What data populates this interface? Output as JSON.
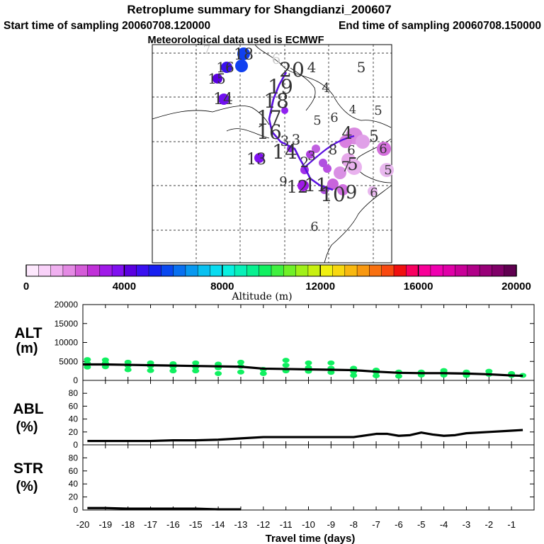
{
  "header": {
    "title": "Retroplume summary for Shangdianzi_200607",
    "start": "Start time of sampling 20060708.120000",
    "end": "End time of sampling 20060708.150000",
    "met": "Meteorological data used is ECMWF"
  },
  "colorbar": {
    "label": "Altitude (m)",
    "min": 0,
    "max": 20000,
    "tick_values": [
      0,
      4000,
      8000,
      12000,
      16000,
      20000
    ],
    "tick_labels": [
      "0",
      "4000",
      "8000",
      "12000",
      "16000",
      "20000"
    ],
    "colors": [
      "#fde8fd",
      "#f9d2f9",
      "#f0b0f0",
      "#e48ae4",
      "#d45cd8",
      "#c030d8",
      "#a01ae8",
      "#8010f0",
      "#5a00e0",
      "#3a10f0",
      "#1820f0",
      "#0848f0",
      "#0870f0",
      "#0898f0",
      "#08c0f0",
      "#08dcf0",
      "#08f0e0",
      "#08f0b8",
      "#08f090",
      "#10f060",
      "#40f040",
      "#70f028",
      "#a0f018",
      "#c8f010",
      "#f0f010",
      "#f8d810",
      "#f8b810",
      "#f89810",
      "#f87010",
      "#f84810",
      "#f01010",
      "#f80060",
      "#f80098",
      "#f000b0",
      "#e000a8",
      "#c80098",
      "#b00088",
      "#980078",
      "#800068",
      "#600050"
    ]
  },
  "map": {
    "plume_numbers": [
      {
        "t": "6",
        "c": "#ccc"
      },
      {
        "t": "7",
        "c": "#ccc"
      },
      {
        "t": "18",
        "c": "#333"
      },
      {
        "t": "16",
        "c": "#333"
      },
      {
        "t": "15",
        "c": "#333"
      },
      {
        "t": "14",
        "c": "#333"
      },
      {
        "t": "20",
        "c": "#333"
      },
      {
        "t": "4",
        "c": "#333"
      },
      {
        "t": "5",
        "c": "#333"
      },
      {
        "t": "4",
        "c": "#333"
      },
      {
        "t": "19",
        "c": "#333"
      },
      {
        "t": "18",
        "c": "#333"
      },
      {
        "t": "4",
        "c": "#333"
      },
      {
        "t": "5",
        "c": "#333"
      },
      {
        "t": "5",
        "c": "#333"
      },
      {
        "t": "6",
        "c": "#333"
      },
      {
        "t": "17",
        "c": "#333"
      },
      {
        "t": "16",
        "c": "#333"
      },
      {
        "t": "3",
        "c": "#333"
      },
      {
        "t": "3",
        "c": "#333"
      },
      {
        "t": "4",
        "c": "#333"
      },
      {
        "t": "5",
        "c": "#333"
      },
      {
        "t": "6",
        "c": "#333"
      },
      {
        "t": "13",
        "c": "#333"
      },
      {
        "t": "14",
        "c": "#333"
      },
      {
        "t": "3",
        "c": "#333"
      },
      {
        "t": "2",
        "c": "#333"
      },
      {
        "t": "8",
        "c": "#333"
      },
      {
        "t": "7",
        "c": "#333"
      },
      {
        "t": "5",
        "c": "#333"
      },
      {
        "t": "6",
        "c": "#333"
      },
      {
        "t": "9",
        "c": "#333"
      },
      {
        "t": "12",
        "c": "#333"
      },
      {
        "t": "11",
        "c": "#333"
      },
      {
        "t": "10",
        "c": "#333"
      },
      {
        "t": "9",
        "c": "#333"
      },
      {
        "t": "6",
        "c": "#333"
      },
      {
        "t": "6",
        "c": "#333"
      },
      {
        "t": "5",
        "c": "#333"
      }
    ]
  },
  "chart_data": [
    {
      "type": "scatter",
      "panel": "ALT",
      "ylabel_line1": "ALT",
      "ylabel_line2": "(m)",
      "ylim": [
        0,
        20000
      ],
      "yticks": [
        0,
        5000,
        10000,
        15000,
        20000
      ],
      "ytick_labels": [
        "0",
        "5000",
        "10000",
        "15000",
        "20000"
      ],
      "series": [
        {
          "name": "mean altitude",
          "style": "line",
          "x": [
            -20,
            -19,
            -18,
            -17,
            -16,
            -15,
            -14,
            -13,
            -12,
            -11,
            -10,
            -9,
            -8,
            -7,
            -6,
            -5,
            -4,
            -3,
            -2,
            -1,
            -0.5
          ],
          "y": [
            4200,
            4200,
            4100,
            4000,
            3900,
            3800,
            3700,
            3600,
            3100,
            3000,
            2900,
            2800,
            2700,
            2300,
            2000,
            1900,
            1900,
            1800,
            1600,
            1300,
            1200
          ]
        },
        {
          "name": "particle altitude",
          "style": "points",
          "x": [
            -19.8,
            -19.8,
            -19.8,
            -19,
            -19,
            -19,
            -18,
            -18,
            -18,
            -17,
            -17,
            -17,
            -16,
            -16,
            -16,
            -15,
            -15,
            -15,
            -14,
            -14,
            -14,
            -13,
            -13,
            -13,
            -12,
            -12,
            -11,
            -11,
            -11,
            -10,
            -10,
            -10,
            -9,
            -9,
            -9,
            -8,
            -8,
            -8,
            -7,
            -7,
            -7,
            -6,
            -6,
            -5,
            -5,
            -4,
            -4,
            -4,
            -3,
            -3,
            -2,
            -2,
            -1,
            -1,
            -0.5
          ],
          "y": [
            3500,
            4500,
            5500,
            3600,
            4600,
            5400,
            2800,
            3900,
            4800,
            2600,
            3800,
            4600,
            2500,
            3600,
            4400,
            2500,
            3500,
            4600,
            1800,
            3300,
            4300,
            2200,
            3700,
            4800,
            1800,
            2900,
            2500,
            4000,
            5300,
            2400,
            3400,
            4600,
            2100,
            3200,
            4600,
            1300,
            2300,
            3200,
            1200,
            2200,
            2700,
            1100,
            2200,
            1400,
            2200,
            1400,
            2100,
            2600,
            1300,
            2200,
            1600,
            2400,
            1300,
            1800,
            1300
          ]
        }
      ]
    },
    {
      "type": "line",
      "panel": "ABL",
      "ylabel_line1": "ABL",
      "ylabel_line2": "(%)",
      "ylim": [
        0,
        100
      ],
      "yticks": [
        0,
        20,
        40,
        60,
        80
      ],
      "ytick_labels": [
        "0",
        "20",
        "40",
        "60",
        "80"
      ],
      "series": [
        {
          "name": "ABL fraction",
          "x": [
            -19.8,
            -19,
            -18,
            -17,
            -16,
            -15,
            -14,
            -13,
            -12,
            -11,
            -10,
            -9,
            -8,
            -7,
            -6.5,
            -6,
            -5.5,
            -5,
            -4.5,
            -4,
            -3.5,
            -3,
            -2,
            -1,
            -0.5
          ],
          "y": [
            6,
            6,
            6,
            6,
            7,
            7,
            8,
            10,
            12,
            12,
            12,
            12,
            12,
            17,
            17,
            14,
            15,
            19,
            16,
            14,
            15,
            18,
            20,
            22,
            23
          ]
        }
      ]
    },
    {
      "type": "line",
      "panel": "STR",
      "ylabel_line1": "STR",
      "ylabel_line2": "(%)",
      "ylim": [
        0,
        100
      ],
      "yticks": [
        0,
        20,
        40,
        60,
        80
      ],
      "ytick_labels": [
        "0",
        "20",
        "40",
        "60",
        "80"
      ],
      "xlabel": "Travel time (days)",
      "xlim": [
        -20,
        0
      ],
      "xticks": [
        -20,
        -19,
        -18,
        -17,
        -16,
        -15,
        -14,
        -13,
        -12,
        -11,
        -10,
        -9,
        -8,
        -7,
        -6,
        -5,
        -4,
        -3,
        -2,
        -1
      ],
      "xtick_labels": [
        "-20",
        "-19",
        "-18",
        "-17",
        "-16",
        "-15",
        "-14",
        "-13",
        "-12",
        "-11",
        "-10",
        "-9",
        "-8",
        "-7",
        "-6",
        "-5",
        "-4",
        "-3",
        "-2",
        "-1"
      ],
      "series": [
        {
          "name": "STR fraction",
          "x": [
            -19.8,
            -19,
            -18,
            -17,
            -16,
            -15,
            -14,
            -13
          ],
          "y": [
            3,
            3,
            2,
            2,
            2,
            2,
            1,
            1
          ]
        }
      ]
    }
  ]
}
